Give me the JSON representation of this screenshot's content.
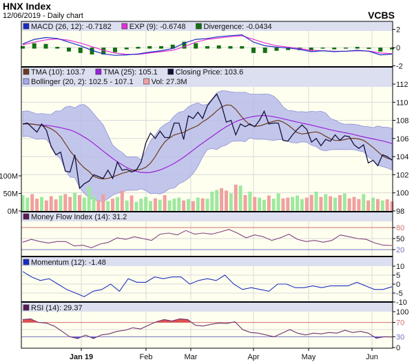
{
  "header": {
    "title": "HNX Index",
    "subtitle": "12/06/2019 - Daily chart",
    "brand": "VCBS"
  },
  "chart_data": [
    {
      "type": "line",
      "panel": "MACD",
      "legend": [
        {
          "label": "MACD (26, 12): -0.7182",
          "color": "#1a2bc4"
        },
        {
          "label": "EXP (9): -0.6748",
          "color": "#e030d8"
        },
        {
          "label": "Divergence: -0.0434",
          "color": "#147014"
        }
      ],
      "yticks": [
        "2",
        "0",
        "-2"
      ],
      "ylim": [
        -2,
        2
      ],
      "series": {
        "macd": [
          0.4,
          0.9,
          1.1,
          1.0,
          0.6,
          0.2,
          -0.3,
          -0.7,
          -0.85,
          -0.8,
          -0.7,
          -0.5,
          -0.35,
          -0.1,
          0.5,
          0.9,
          1.0,
          1.2,
          1.3,
          1.4,
          0.6,
          0.2,
          0.05,
          -0.05,
          -0.2,
          -0.45,
          -0.35,
          -0.45,
          -0.4,
          -0.3,
          -0.4,
          -0.8,
          -0.72
        ],
        "signal": [
          0.3,
          0.6,
          0.85,
          0.95,
          0.8,
          0.5,
          0.1,
          -0.3,
          -0.6,
          -0.75,
          -0.75,
          -0.6,
          -0.45,
          -0.3,
          0.1,
          0.6,
          0.9,
          1.05,
          1.2,
          1.3,
          0.9,
          0.5,
          0.2,
          0.05,
          -0.1,
          -0.3,
          -0.35,
          -0.4,
          -0.4,
          -0.35,
          -0.38,
          -0.6,
          -0.67
        ]
      }
    },
    {
      "type": "line",
      "panel": "Price",
      "legend": [
        {
          "label": "TMA (10): 103.7",
          "color": "#6b3a1e"
        },
        {
          "label": "TMA (25): 105.1",
          "color": "#9a22d8"
        },
        {
          "label": "Closing Price: 103.6",
          "color": "#10103a"
        },
        {
          "label": "Bollinger (20, 2): 102.5 - 107.1",
          "color": "#a4aae8"
        },
        {
          "label": "Vol: 27.3M",
          "color": "#f0a0a0"
        }
      ],
      "yticks": [
        "112",
        "110",
        "108",
        "106",
        "104",
        "102",
        "100",
        "98"
      ],
      "ylim": [
        98,
        112
      ],
      "vol_ticks": [
        "100M",
        "50M",
        "0M"
      ],
      "close": [
        107.6,
        107.7,
        107.2,
        106.7,
        107.6,
        106.9,
        105.1,
        104.2,
        104.5,
        102.4,
        102.3,
        104.2,
        100.5,
        101.0,
        101.3,
        102.0,
        101.8,
        101.6,
        102.5,
        101.6,
        103.4,
        102.5,
        102.6,
        102.3,
        102.5,
        103.4,
        105.5,
        106.6,
        106.0,
        106.8,
        106.1,
        106.1,
        107.7,
        107.7,
        105.9,
        108.5,
        108.2,
        108.9,
        108.2,
        109.6,
        110.3,
        110.9,
        109.7,
        107.8,
        108.0,
        106.4,
        107.6,
        107.3,
        107.6,
        107.3,
        108.0,
        109.0,
        107.6,
        107.7,
        107.7,
        105.8,
        105.7,
        106.4,
        107.0,
        107.5,
        107.0,
        105.6,
        106.0,
        105.2,
        105.9,
        105.7,
        106.4,
        105.8,
        106.3,
        106.2,
        105.3,
        104.9,
        105.3,
        103.3,
        103.6,
        103.0,
        104.2,
        104.0,
        103.6
      ],
      "volume_m": [
        45,
        38,
        48,
        35,
        40,
        30,
        42,
        33,
        44,
        48,
        40,
        52,
        45,
        38,
        70,
        42,
        30,
        48,
        28,
        35,
        40,
        58,
        30,
        44,
        26,
        35,
        40,
        28,
        36,
        32,
        45,
        30,
        35,
        38,
        30,
        34,
        28,
        38,
        36,
        35,
        55,
        60,
        65,
        58,
        50,
        75,
        72,
        45,
        55,
        40,
        38,
        32,
        44,
        35,
        50,
        36,
        38,
        40,
        44,
        34,
        38,
        46,
        55,
        40,
        48,
        42,
        38,
        45,
        50,
        36,
        40,
        34,
        48,
        30,
        38,
        34,
        30,
        33,
        27.3
      ]
    },
    {
      "type": "line",
      "panel": "MFI",
      "legend": [
        {
          "label": "Money Flow Index (14): 31.2",
          "color": "#5a1a5a"
        }
      ],
      "yticks": [
        "80",
        "50",
        "20"
      ],
      "ylim": [
        0,
        100
      ],
      "values": [
        40,
        48,
        42,
        38,
        42,
        42,
        30,
        32,
        25,
        35,
        40,
        52,
        48,
        55,
        50,
        45,
        62,
        65,
        60,
        72,
        62,
        65,
        62,
        68,
        75,
        65,
        52,
        60,
        55,
        45,
        52,
        62,
        48,
        42,
        45,
        40,
        45,
        60,
        55,
        50,
        48,
        38,
        32,
        31.2
      ]
    },
    {
      "type": "line",
      "panel": "Momentum",
      "legend": [
        {
          "label": "Momentum (12): -1.48",
          "color": "#1a2bc4"
        }
      ],
      "yticks": [
        "10",
        "5",
        "0",
        "-5",
        "-10"
      ],
      "ylim": [
        -10,
        10
      ],
      "values": [
        7,
        4,
        2,
        3,
        0,
        -3,
        -5,
        -7,
        -4,
        -3,
        0,
        -4,
        3,
        1,
        1,
        4,
        3,
        4,
        4,
        0,
        2,
        3,
        2,
        5,
        0,
        -3,
        -2,
        -3,
        -4,
        0,
        0,
        -2,
        -2,
        -1,
        -2,
        -1,
        -1,
        -1,
        1,
        -1,
        -3,
        -3,
        -1.48
      ]
    },
    {
      "type": "line",
      "panel": "RSI",
      "legend": [
        {
          "label": "RSI (14): 29.37",
          "color": "#5a1a5a"
        }
      ],
      "yticks": [
        "100",
        "70",
        "30",
        "0"
      ],
      "ylim": [
        0,
        100
      ],
      "values": [
        78,
        80,
        70,
        68,
        60,
        45,
        30,
        25,
        35,
        25,
        35,
        38,
        45,
        48,
        55,
        52,
        62,
        72,
        78,
        74,
        80,
        78,
        62,
        60,
        65,
        68,
        67,
        72,
        50,
        42,
        40,
        35,
        30,
        40,
        50,
        40,
        35,
        40,
        38,
        42,
        40,
        48,
        42,
        45,
        40,
        26,
        30,
        29.37
      ]
    }
  ],
  "xaxis": {
    "ticks": [
      "Jan 19",
      "Feb",
      "Mar",
      "Apr",
      "May",
      "Jun"
    ]
  },
  "colors": {
    "bg": "#fffff0",
    "header_band": "#dcdff0",
    "grid": "#d8d8d8",
    "up": "#9ee89e",
    "down": "#f0a0a0",
    "overbought": "#e05050",
    "oversold": "#5050e0"
  }
}
